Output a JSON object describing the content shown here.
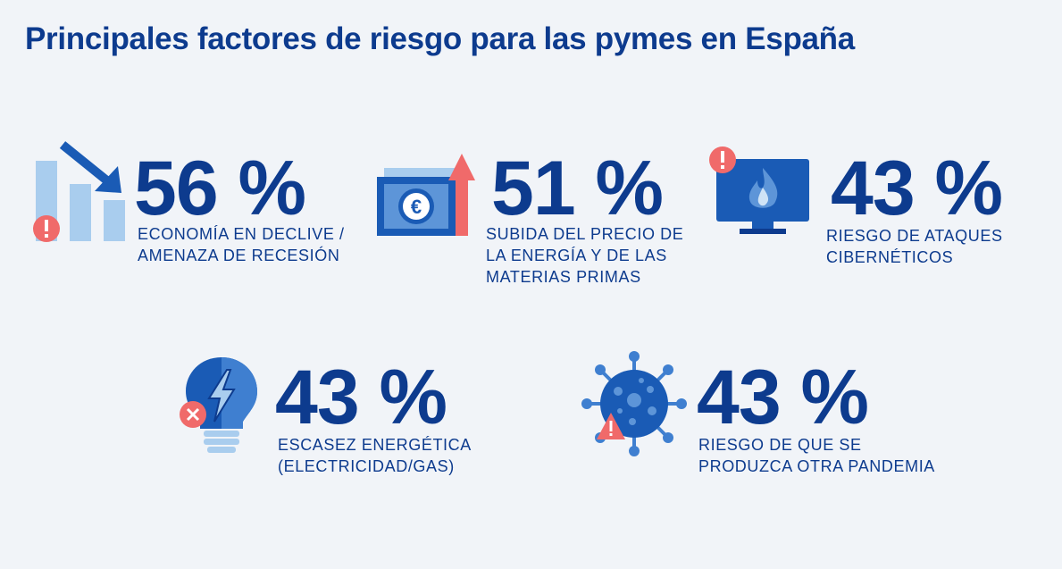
{
  "title": "Principales factores de riesgo para las pymes en España",
  "colors": {
    "navy": "#0d3b8e",
    "blue": "#1a5bb5",
    "light_blue": "#a9cdee",
    "alert_red": "#f06a6a",
    "background": "#f1f4f8"
  },
  "factors": [
    {
      "icon": "declining-bar-chart-icon",
      "percent": "56 %",
      "lines": [
        "ECONOMÍA EN DECLIVE /",
        "AMENAZA DE RECESIÓN"
      ]
    },
    {
      "icon": "euro-banknote-rising-arrow-icon",
      "percent": "51 %",
      "lines": [
        "SUBIDA DEL PRECIO DE",
        "LA ENERGÍA Y DE LAS",
        "MATERIAS PRIMAS"
      ]
    },
    {
      "icon": "monitor-flame-alert-icon",
      "percent": "43 %",
      "lines": [
        "RIESGO DE ATAQUES",
        "CIBERNÉTICOS"
      ]
    },
    {
      "icon": "lightbulb-lightning-icon",
      "percent": "43 %",
      "lines": [
        "ESCASEZ ENERGÉTICA",
        "(ELECTRICIDAD/GAS)"
      ]
    },
    {
      "icon": "virus-warning-icon",
      "percent": "43 %",
      "lines": [
        "RIESGO DE QUE SE",
        "PRODUZCA OTRA PANDEMIA"
      ]
    }
  ]
}
